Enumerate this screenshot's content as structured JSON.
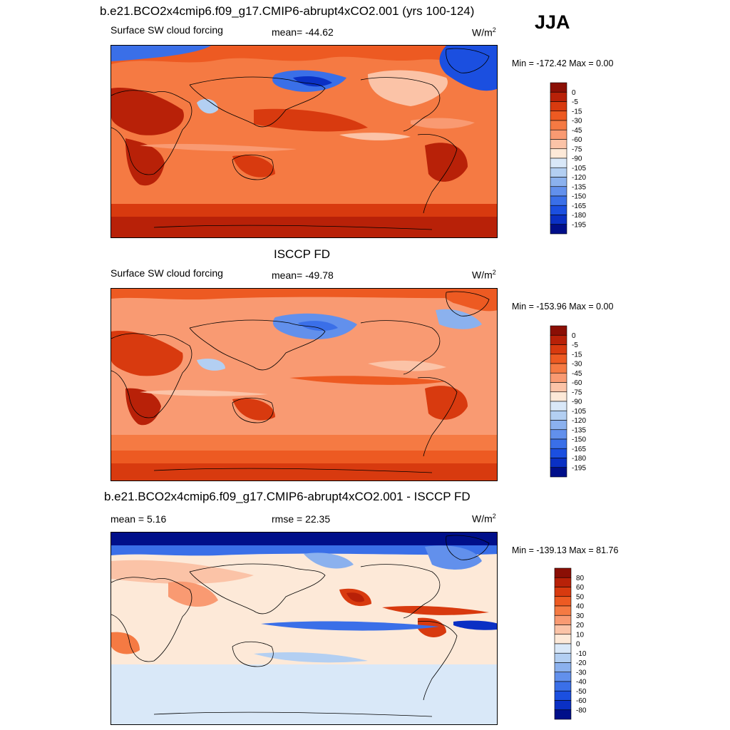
{
  "header": {
    "season": "JJA",
    "case_title": "b.e21.BCO2x4cmip6.f09_g17.CMIP6-abrupt4xCO2.001 (yrs 100-124)",
    "obs_title": "ISCCP FD",
    "diff_title": "b.e21.BCO2x4cmip6.f09_g17.CMIP6-abrupt4xCO2.001 - ISCCP FD"
  },
  "panels": [
    {
      "left_label": "Surface SW cloud forcing",
      "center_label": "mean= -44.62",
      "units": "W/m",
      "units_sup": "2",
      "minmax": "Min = -172.42 Max =   0.00"
    },
    {
      "left_label": "Surface SW cloud forcing",
      "center_label": "mean= -49.78",
      "units": "W/m",
      "units_sup": "2",
      "minmax": "Min = -153.96 Max =   0.00"
    },
    {
      "left_label": "mean =   5.16",
      "center_label": "rmse =  22.35",
      "units": "W/m",
      "units_sup": "2",
      "minmax": "Min = -139.13 Max =  81.76"
    }
  ],
  "colorbars": {
    "absolute": {
      "labels": [
        "0",
        "-5",
        "-15",
        "-30",
        "-45",
        "-60",
        "-75",
        "-90",
        "-105",
        "-120",
        "-135",
        "-150",
        "-165",
        "-180",
        "-195"
      ],
      "colors": [
        "#8b0f05",
        "#b82108",
        "#d83a0f",
        "#ed5a22",
        "#f57a43",
        "#f99a72",
        "#fbc3a7",
        "#fde9d8",
        "#d9e8f8",
        "#b3cff2",
        "#8bb1ee",
        "#6290ec",
        "#3a6fe8",
        "#1b4fe0",
        "#0a30c4",
        "#000f8a"
      ]
    },
    "difference": {
      "labels": [
        "80",
        "60",
        "50",
        "40",
        "30",
        "20",
        "10",
        "0",
        "-10",
        "-20",
        "-30",
        "-40",
        "-50",
        "-60",
        "-80"
      ],
      "colors": [
        "#8b0f05",
        "#b82108",
        "#d83a0f",
        "#ed5a22",
        "#f57a43",
        "#f99a72",
        "#fbc3a7",
        "#fde9d8",
        "#d9e8f8",
        "#b3cff2",
        "#8bb1ee",
        "#6290ec",
        "#3a6fe8",
        "#1b4fe0",
        "#0a30c4",
        "#000f8a"
      ]
    }
  },
  "chart_data": [
    {
      "type": "heatmap",
      "title": "b.e21.BCO2x4cmip6.f09_g17.CMIP6-abrupt4xCO2.001 (yrs 100-124)",
      "variable": "Surface SW cloud forcing",
      "season": "JJA",
      "mean": -44.62,
      "min": -172.42,
      "max": 0.0,
      "contour_levels": [
        0,
        -5,
        -15,
        -30,
        -45,
        -60,
        -75,
        -90,
        -105,
        -120,
        -135,
        -150,
        -165,
        -180,
        -195
      ]
    },
    {
      "type": "heatmap",
      "title": "ISCCP FD",
      "variable": "Surface SW cloud forcing",
      "season": "JJA",
      "mean": -49.78,
      "min": -153.96,
      "max": 0.0,
      "contour_levels": [
        0,
        -5,
        -15,
        -30,
        -45,
        -60,
        -75,
        -90,
        -105,
        -120,
        -135,
        -150,
        -165,
        -180,
        -195
      ]
    },
    {
      "type": "heatmap",
      "title": "b.e21.BCO2x4cmip6.f09_g17.CMIP6-abrupt4xCO2.001 - ISCCP FD",
      "season": "JJA",
      "mean": 5.16,
      "rmse": 22.35,
      "min": -139.13,
      "max": 81.76,
      "contour_levels": [
        80,
        60,
        50,
        40,
        30,
        20,
        10,
        0,
        -10,
        -20,
        -30,
        -40,
        -50,
        -60,
        -80
      ]
    }
  ]
}
